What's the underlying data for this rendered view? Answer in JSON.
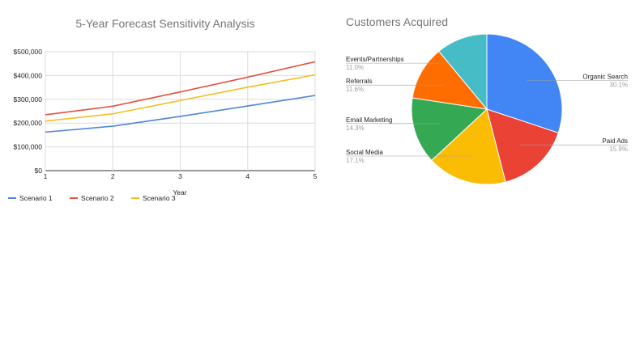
{
  "chart_data": [
    {
      "type": "line",
      "title": "5-Year Forecast Sensitivity Analysis",
      "xlabel": "Year",
      "ylabel": "",
      "x": [
        1,
        2,
        3,
        4,
        5
      ],
      "x_tick_labels": [
        "1",
        "2",
        "3",
        "4",
        "5"
      ],
      "y_tick_labels": [
        "$0",
        "$100,000",
        "$200,000",
        "$300,000",
        "$400,000",
        "$500,000"
      ],
      "ylim": [
        0,
        500000
      ],
      "grid": true,
      "legend_position": "bottom-left",
      "series": [
        {
          "name": "Scenario 1",
          "color": "#4e86d4",
          "values": [
            162000,
            187000,
            228000,
            272000,
            316000
          ]
        },
        {
          "name": "Scenario 2",
          "color": "#e5513f",
          "values": [
            235000,
            271000,
            331000,
            393000,
            458000
          ]
        },
        {
          "name": "Scenario 3",
          "color": "#f2bf1f",
          "values": [
            208000,
            239000,
            295000,
            351000,
            403000
          ]
        }
      ]
    },
    {
      "type": "pie",
      "title": "Customers Acquired",
      "slices": [
        {
          "label": "Organic Search",
          "percent": 30.1,
          "percent_label": "30.1%",
          "color": "#4285f4"
        },
        {
          "label": "Paid Ads",
          "percent": 15.9,
          "percent_label": "15.9%",
          "color": "#ea4335"
        },
        {
          "label": "Social Media",
          "percent": 17.1,
          "percent_label": "17.1%",
          "color": "#fbbc04"
        },
        {
          "label": "Email Marketing",
          "percent": 14.3,
          "percent_label": "14.3%",
          "color": "#34a853"
        },
        {
          "label": "Referrals",
          "percent": 11.6,
          "percent_label": "11.6%",
          "color": "#ff6d01"
        },
        {
          "label": "Events/Partnerships",
          "percent": 11.0,
          "percent_label": "11.0%",
          "color": "#46bdc6"
        }
      ]
    }
  ]
}
